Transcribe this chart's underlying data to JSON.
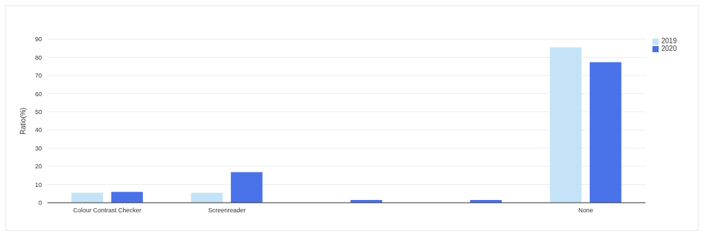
{
  "chart_data": {
    "type": "bar",
    "ylabel": "Ratio(%)",
    "categories": [
      "Colour Contrast Checker",
      "Screenreader",
      null,
      null,
      "None"
    ],
    "series": [
      {
        "name": "2019",
        "color": "#c5e3f6",
        "values": [
          5.5,
          5.5,
          null,
          null,
          85.5
        ]
      },
      {
        "name": "2020",
        "color": "#4a72e8",
        "values": [
          6,
          16.8,
          1.5,
          1.5,
          77.3
        ]
      }
    ],
    "ylim": [
      0,
      90
    ],
    "yticks": [
      0,
      10,
      20,
      30,
      40,
      50,
      60,
      70,
      80,
      90
    ],
    "grid": "y",
    "legend": "top right"
  }
}
